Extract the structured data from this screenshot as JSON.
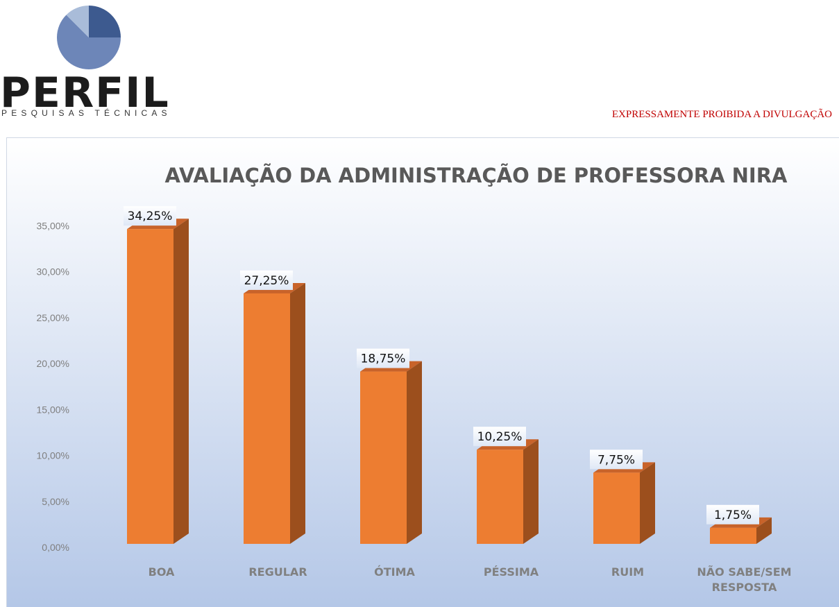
{
  "logo": {
    "name": "PERFIL",
    "subtitle": "PESQUISAS TÉCNICAS",
    "colors": {
      "dark": "#3d5a8f",
      "mid": "#6d86b8",
      "light": "#a9bcd9"
    }
  },
  "notice": "EXPRESSAMENTE PROIBIDA A DIVULGAÇÃO",
  "chart_data": {
    "type": "bar",
    "title": "AVALIAÇÃO DA ADMINISTRAÇÃO DE PROFESSORA NIRA",
    "xlabel": "",
    "ylabel": "",
    "categories": [
      "BOA",
      "REGULAR",
      "ÓTIMA",
      "PÉSSIMA",
      "RUIM",
      "NÃO SABE/SEM RESPOSTA"
    ],
    "values": [
      34.25,
      27.25,
      18.75,
      10.25,
      7.75,
      1.75
    ],
    "value_labels": [
      "34,25%",
      "27,25%",
      "18,75%",
      "10,25%",
      "7,75%",
      "1,75%"
    ],
    "y_ticks": [
      "0,00%",
      "5,00%",
      "10,00%",
      "15,00%",
      "20,00%",
      "25,00%",
      "30,00%",
      "35,00%"
    ],
    "ylim": [
      0,
      35
    ],
    "grid": false,
    "legend": "none",
    "colors": {
      "bar_front": "#ed7d31",
      "bar_side": "#9c4f1d",
      "bar_top": "#c8632a",
      "title": "#595959",
      "axis_text": "#7f7f7f",
      "category_text": "#808080",
      "label_bg": "#dfe8f6",
      "background_top": "#ffffff",
      "background_bottom": "#b4c7e7"
    }
  }
}
